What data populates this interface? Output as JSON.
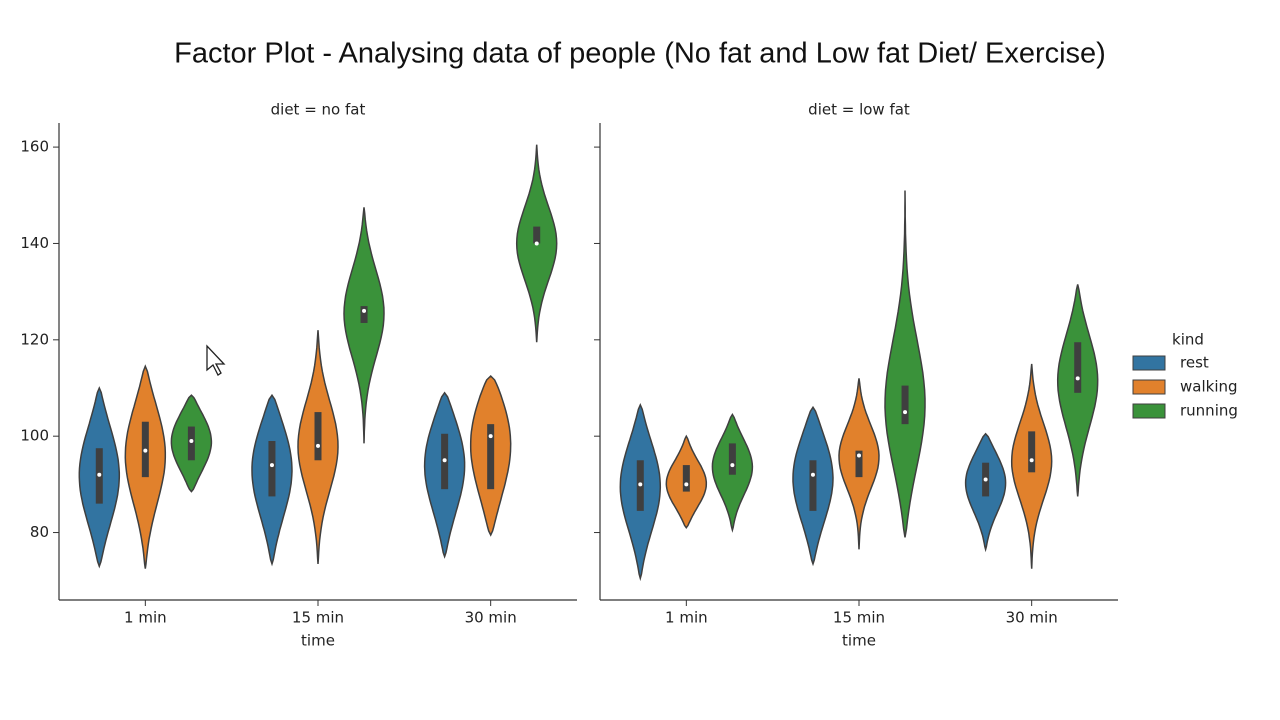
{
  "title": "Factor Plot - Analysing data of people (No fat and Low fat Diet/ Exercise)",
  "legend": {
    "title": "kind"
  },
  "chart_data": [
    {
      "type": "violin",
      "title": "diet = no fat",
      "x_label": "time",
      "categories": [
        "1 min",
        "15 min",
        "30 min"
      ],
      "ylim": [
        66,
        165
      ],
      "yticks": [
        80,
        100,
        120,
        140,
        160
      ],
      "series": [
        {
          "name": "rest",
          "color": "#3274a1",
          "min": [
            73,
            73.5,
            75
          ],
          "q1": [
            86,
            87.5,
            89
          ],
          "median": [
            92,
            94,
            95
          ],
          "q3": [
            97.5,
            99,
            100.5
          ],
          "max": [
            110,
            108.5,
            109
          ]
        },
        {
          "name": "walking",
          "color": "#e1812c",
          "min": [
            72.5,
            73.5,
            79.5
          ],
          "q1": [
            91.5,
            95,
            89
          ],
          "median": [
            97,
            98,
            100
          ],
          "q3": [
            103,
            105,
            102.5
          ],
          "max": [
            114.5,
            122,
            112.5
          ]
        },
        {
          "name": "running",
          "color": "#3a923a",
          "min": [
            88.5,
            98.5,
            119.5
          ],
          "q1": [
            95,
            123.5,
            140
          ],
          "median": [
            99,
            126,
            140
          ],
          "q3": [
            102,
            127,
            143.5
          ],
          "max": [
            108.5,
            147.5,
            160.5
          ]
        }
      ]
    },
    {
      "type": "violin",
      "title": "diet = low fat",
      "x_label": "time",
      "categories": [
        "1 min",
        "15 min",
        "30 min"
      ],
      "ylim": [
        66,
        165
      ],
      "yticks": [
        80,
        100,
        120,
        140,
        160
      ],
      "series": [
        {
          "color": "#3274a1",
          "min": [
            70.5,
            73.5,
            76.5
          ],
          "q1": [
            84.5,
            84.5,
            87.5
          ],
          "median": [
            90,
            92,
            91
          ],
          "q3": [
            95,
            95,
            94.5
          ],
          "max": [
            106.5,
            106,
            100.5
          ]
        },
        {
          "color": "#e1812c",
          "min": [
            81,
            76.5,
            72.5
          ],
          "q1": [
            88.5,
            91.5,
            92.5
          ],
          "median": [
            90,
            96,
            95
          ],
          "q3": [
            94,
            97,
            101
          ],
          "max": [
            100,
            112,
            115
          ]
        },
        {
          "color": "#3a923a",
          "min": [
            80.5,
            79,
            87.5
          ],
          "q1": [
            92,
            102.5,
            109
          ],
          "median": [
            94,
            105,
            112
          ],
          "q3": [
            98.5,
            110.5,
            119.5
          ],
          "max": [
            104.5,
            151,
            131.5
          ]
        }
      ]
    }
  ]
}
